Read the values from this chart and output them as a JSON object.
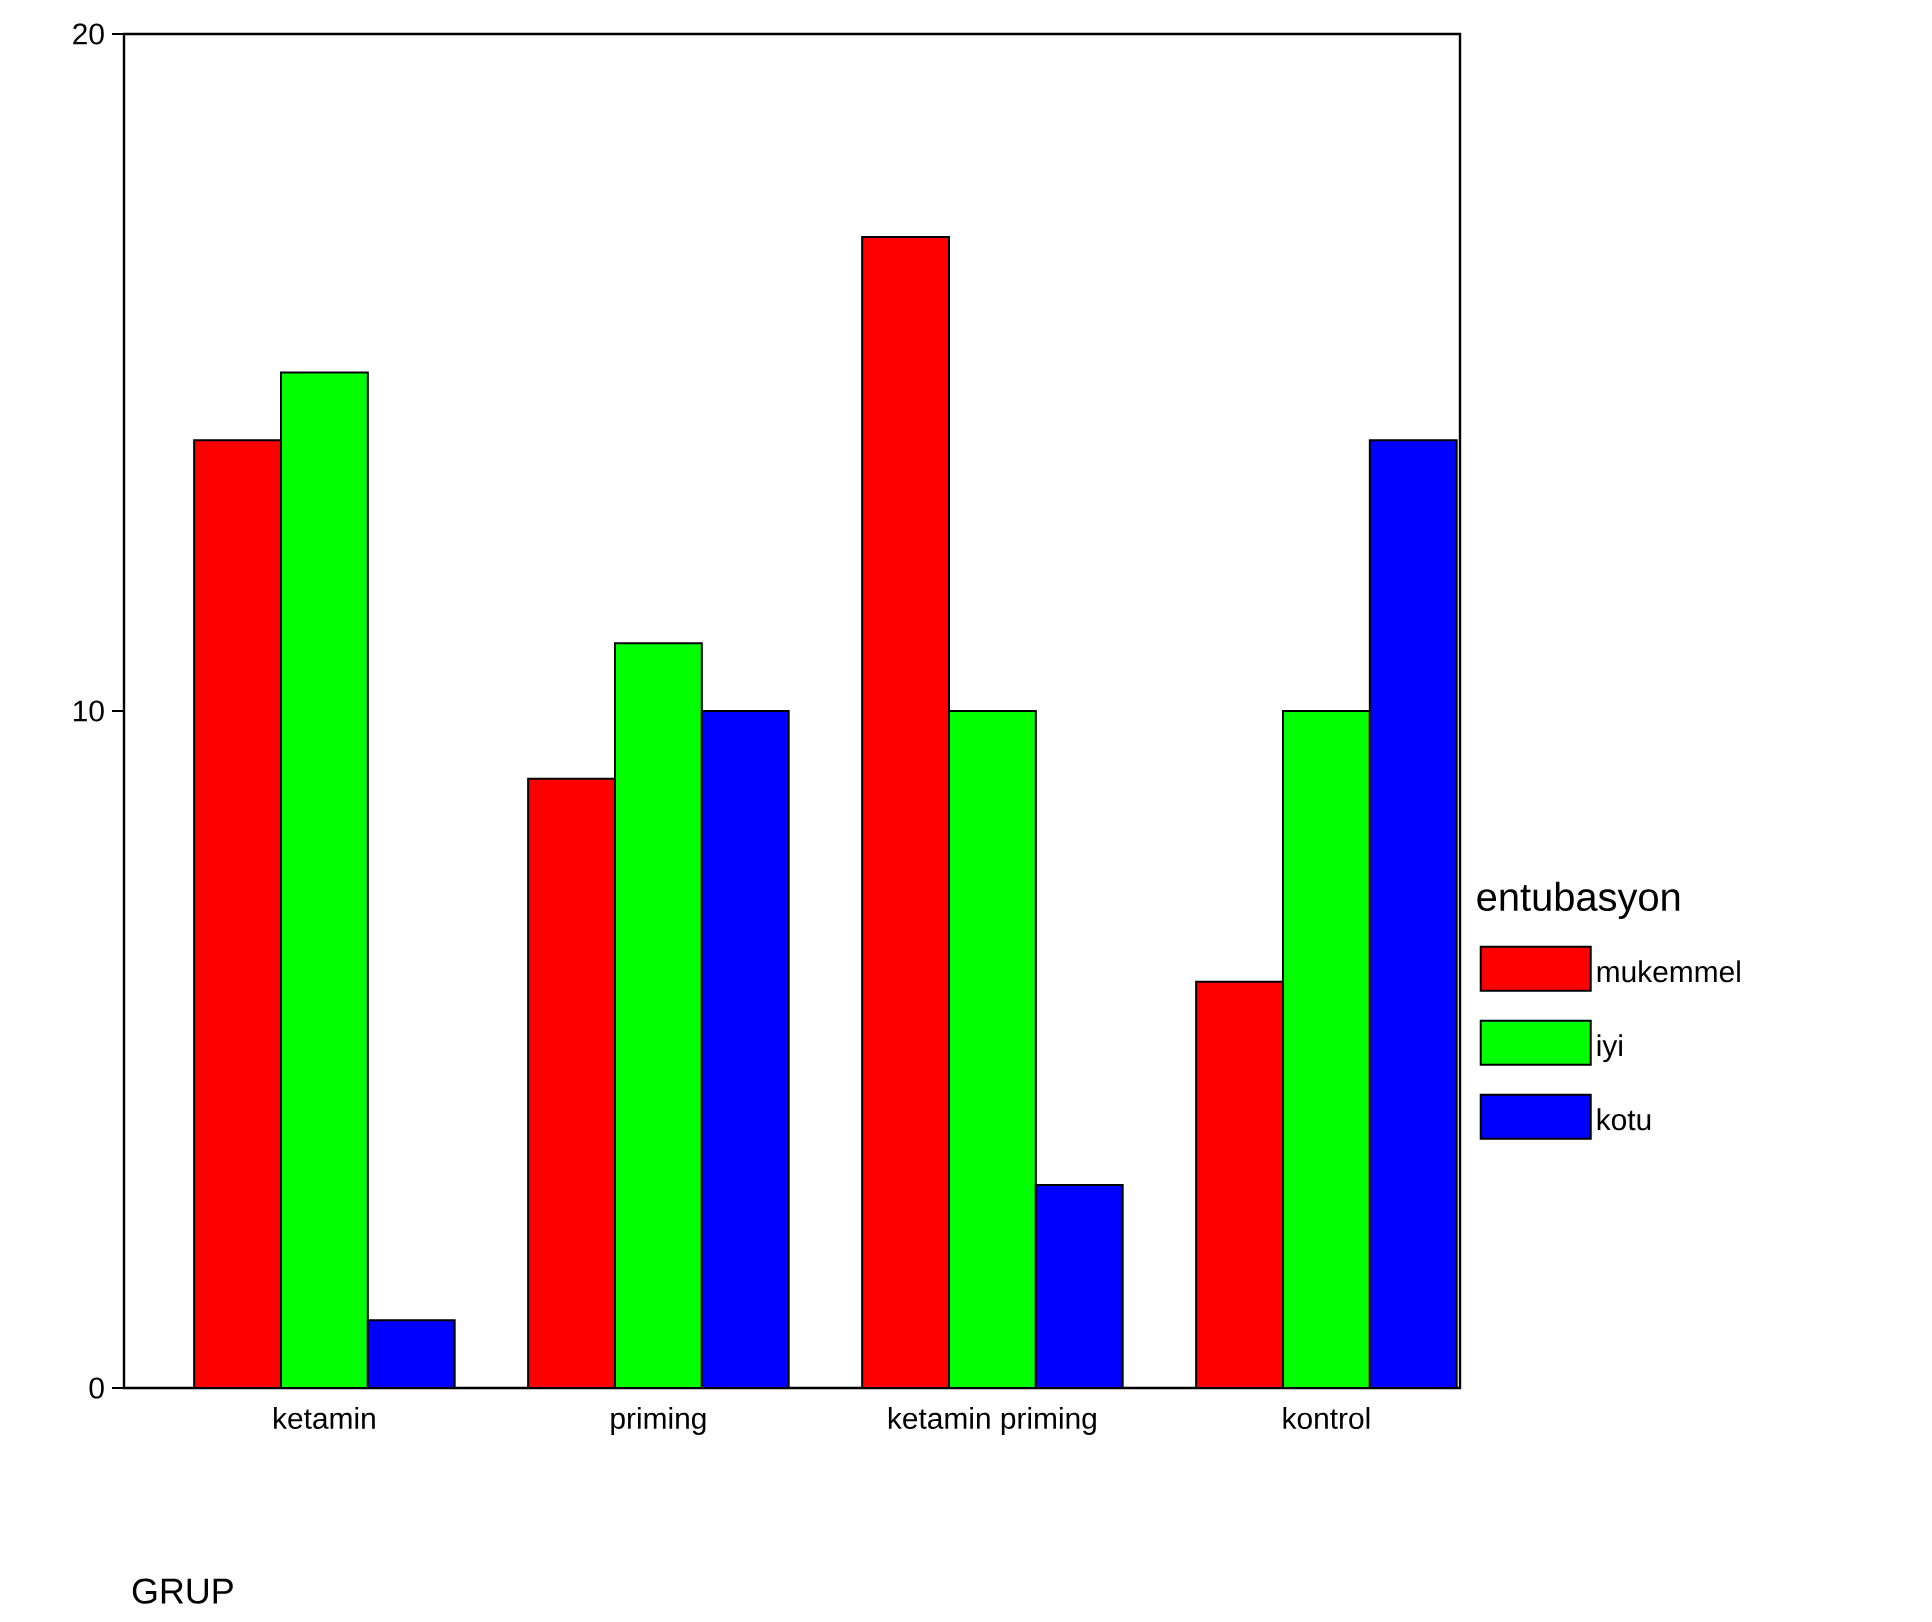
{
  "chart_data": {
    "type": "bar",
    "xlabel": "GRUP",
    "legend_title": "entubasyon",
    "categories": [
      "ketamin",
      "priming",
      "ketamin priming",
      "kontrol"
    ],
    "series": [
      {
        "name": "mukemmel",
        "color": "#ff0000",
        "values": [
          14,
          9,
          17,
          6
        ]
      },
      {
        "name": "iyi",
        "color": "#00ff00",
        "values": [
          15,
          11,
          10,
          10
        ]
      },
      {
        "name": "kotu",
        "color": "#0000ff",
        "values": [
          1,
          10,
          3,
          14
        ]
      }
    ],
    "ylim": [
      0,
      20
    ],
    "yticks": [
      0,
      10,
      20
    ],
    "grid": false,
    "legend": "right"
  }
}
